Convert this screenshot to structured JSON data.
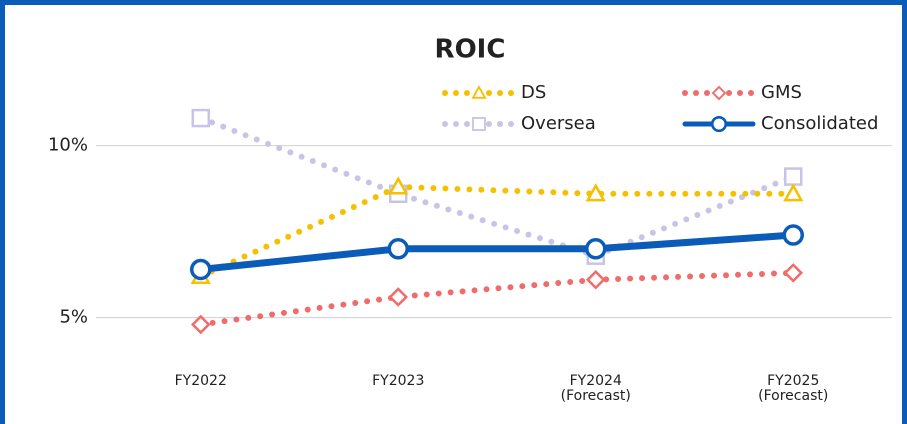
{
  "chart_data": {
    "type": "line",
    "title": "ROIC",
    "categories": [
      "FY2022",
      "FY2023",
      "FY2024 (Forecast)",
      "FY2025 (Forecast)"
    ],
    "series": [
      {
        "name": "DS",
        "color": "#f5c000",
        "style": "dotted",
        "marker": "triangle",
        "values": [
          6.2,
          8.8,
          8.6,
          8.6
        ]
      },
      {
        "name": "GMS",
        "color": "#f06b6b",
        "style": "dotted",
        "marker": "diamond",
        "values": [
          4.8,
          5.6,
          6.1,
          6.3
        ]
      },
      {
        "name": "Oversea",
        "color": "#c8c4e8",
        "style": "dotted",
        "marker": "square",
        "values": [
          10.8,
          8.6,
          6.8,
          9.1
        ]
      },
      {
        "name": "Consolidated",
        "color": "#0a5cb8",
        "style": "solid",
        "marker": "circle",
        "values": [
          6.4,
          7.0,
          7.0,
          7.4
        ]
      }
    ],
    "ylim": [
      4,
      11
    ],
    "yticks": [
      {
        "value": 5,
        "label": "5%"
      },
      {
        "value": 10,
        "label": "10%"
      }
    ],
    "grid": true
  }
}
